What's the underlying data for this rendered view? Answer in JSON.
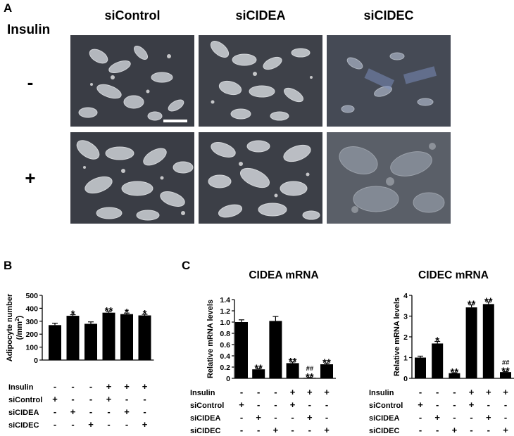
{
  "panelA": {
    "letter": "A",
    "row_title": "Insulin",
    "columns": [
      "siControl",
      "siCIDEA",
      "siCIDEC"
    ],
    "rows": [
      "-",
      "+"
    ]
  },
  "panelB": {
    "letter": "B"
  },
  "panelC": {
    "letter": "C"
  },
  "table_labels": [
    "Insulin",
    "siControl",
    "siCIDEA",
    "siCIDEC"
  ],
  "table_values": [
    [
      "-",
      "-",
      "-",
      "+",
      "+",
      "+"
    ],
    [
      "+",
      "-",
      "-",
      "+",
      "-",
      "-"
    ],
    [
      "-",
      "+",
      "-",
      "-",
      "+",
      "-"
    ],
    [
      "-",
      "-",
      "+",
      "-",
      "-",
      "+"
    ]
  ],
  "chart_data": [
    {
      "type": "bar",
      "ylabel": "Adipocyte number (/mm²)",
      "ylabel_main": "Adipocyte number",
      "ylabel_unit": "(/mm",
      "ylabel_sup": "2",
      "ylabel_close": ")",
      "ylim": [
        0,
        500
      ],
      "yticks": [
        "0",
        "100",
        "200",
        "300",
        "400",
        "500"
      ],
      "values": [
        270,
        342,
        280,
        366,
        355,
        345
      ],
      "errors": [
        15,
        8,
        15,
        8,
        8,
        8
      ],
      "annotations": [
        "",
        "*",
        "",
        "**",
        "*",
        "*"
      ],
      "annotations2": [
        "",
        "",
        "",
        "",
        "",
        ""
      ]
    },
    {
      "type": "bar",
      "title": "CIDEA mRNA",
      "ylabel": "Relative mRNA levels",
      "ylim": [
        0,
        1.4
      ],
      "yticks": [
        "0",
        "0.2",
        "0.4",
        "0.6",
        "0.8",
        "1.0",
        "1.2",
        "1.4"
      ],
      "values": [
        1.0,
        0.16,
        1.02,
        0.27,
        0.01,
        0.25
      ],
      "errors": [
        0.04,
        0.01,
        0.08,
        0.02,
        0.005,
        0.02
      ],
      "annotations": [
        "",
        "**",
        "",
        "**",
        "**",
        "**"
      ],
      "annotations2": [
        "",
        "",
        "",
        "",
        "##",
        ""
      ]
    },
    {
      "type": "bar",
      "title": "CIDEC mRNA",
      "ylabel": "Relative mRNA levels",
      "ylim": [
        0,
        4
      ],
      "yticks": [
        "0",
        "1",
        "2",
        "3",
        "4"
      ],
      "values": [
        1.0,
        1.68,
        0.25,
        3.42,
        3.58,
        0.3
      ],
      "errors": [
        0.07,
        0.1,
        0.02,
        0.12,
        0.1,
        0.02
      ],
      "annotations": [
        "",
        "*",
        "**",
        "**",
        "**",
        "**"
      ],
      "annotations2": [
        "",
        "",
        "",
        "",
        "",
        "##"
      ]
    }
  ]
}
